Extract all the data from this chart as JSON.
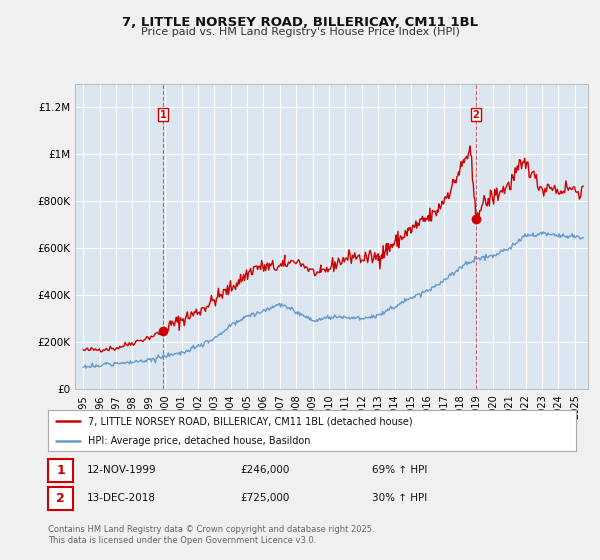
{
  "title": "7, LITTLE NORSEY ROAD, BILLERICAY, CM11 1BL",
  "subtitle": "Price paid vs. HM Land Registry's House Price Index (HPI)",
  "bg_color": "#f0f0f0",
  "plot_bg_color": "#dce6f0",
  "grid_color": "#ffffff",
  "red_color": "#cc0000",
  "blue_color": "#6699cc",
  "sale1_x": 1999.87,
  "sale1_y": 246000,
  "sale2_x": 2018.95,
  "sale2_y": 725000,
  "legend_label_red": "7, LITTLE NORSEY ROAD, BILLERICAY, CM11 1BL (detached house)",
  "legend_label_blue": "HPI: Average price, detached house, Basildon",
  "annotation1_date": "12-NOV-1999",
  "annotation1_price": "£246,000",
  "annotation1_hpi": "69% ↑ HPI",
  "annotation2_date": "13-DEC-2018",
  "annotation2_price": "£725,000",
  "annotation2_hpi": "30% ↑ HPI",
  "footer": "Contains HM Land Registry data © Crown copyright and database right 2025.\nThis data is licensed under the Open Government Licence v3.0.",
  "ylim": [
    0,
    1300000
  ],
  "xlim_start": 1994.5,
  "xlim_end": 2025.8,
  "yticks": [
    0,
    200000,
    400000,
    600000,
    800000,
    1000000,
    1200000
  ],
  "ytick_labels": [
    "£0",
    "£200K",
    "£400K",
    "£600K",
    "£800K",
    "£1M",
    "£1.2M"
  ],
  "xticks": [
    1995,
    1996,
    1997,
    1998,
    1999,
    2000,
    2001,
    2002,
    2003,
    2004,
    2005,
    2006,
    2007,
    2008,
    2009,
    2010,
    2011,
    2012,
    2013,
    2014,
    2015,
    2016,
    2017,
    2018,
    2019,
    2020,
    2021,
    2022,
    2023,
    2024,
    2025
  ]
}
